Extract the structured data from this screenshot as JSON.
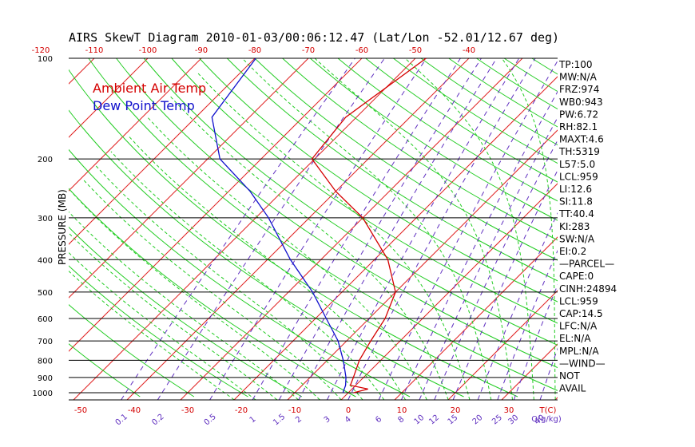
{
  "chart_data": {
    "type": "line",
    "title": "AIRS SkewT Diagram 2010-01-03/00:06:12.47 (Lat/Lon -52.01/12.67 deg)",
    "ylabel": "PRESSURE (MB)",
    "xlabel": "T(C)",
    "mixing_ratio_label": "Q(g/kg)",
    "pressure_ticks": [
      100,
      200,
      300,
      400,
      500,
      600,
      700,
      800,
      900,
      1000
    ],
    "pressure_tick_labels": [
      "100",
      "200",
      "300",
      "400",
      "500",
      "600",
      "700",
      "800",
      "900",
      "1000"
    ],
    "top_temp_ticks": [
      -120,
      -110,
      -100,
      -90,
      -80,
      -70,
      -60,
      -50,
      -40
    ],
    "top_temp_labels": [
      "-120",
      "-110",
      "-100",
      "-90",
      "-80",
      "-70",
      "-60",
      "-50",
      "-40"
    ],
    "bottom_temp_ticks": [
      -50,
      -40,
      -30,
      -20,
      -10,
      0,
      10,
      20,
      30
    ],
    "bottom_temp_labels": [
      "-50",
      "-40",
      "-30",
      "-20",
      "-10",
      "0",
      "10",
      "20",
      "30"
    ],
    "mixing_ratio_ticks": [
      0.1,
      0.2,
      0.5,
      1,
      1.5,
      2,
      3,
      4,
      6,
      8,
      10,
      12,
      15,
      20,
      25,
      30,
      40
    ],
    "mixing_ratio_labels": [
      "0.1",
      "0.2",
      "0.5",
      "1",
      "1.5",
      "2",
      "3",
      "4",
      "6",
      "8",
      "10",
      "12",
      "15",
      "20",
      "25",
      "30",
      "40"
    ],
    "series": [
      {
        "name": "Ambient Air Temp",
        "color": "#d40000",
        "points": [
          [
            1000,
            1
          ],
          [
            975,
            3
          ],
          [
            950,
            -1
          ],
          [
            900,
            -1.9
          ],
          [
            800,
            -4
          ],
          [
            700,
            -5.5
          ],
          [
            600,
            -7
          ],
          [
            500,
            -10
          ],
          [
            400,
            -17.5
          ],
          [
            300,
            -30
          ],
          [
            250,
            -40
          ],
          [
            200,
            -50.5
          ],
          [
            150,
            -52
          ],
          [
            100,
            -48
          ]
        ]
      },
      {
        "name": "Dew Point Temp",
        "color": "#1010cc",
        "points": [
          [
            1000,
            -1
          ],
          [
            950,
            -1.9
          ],
          [
            900,
            -3.3
          ],
          [
            800,
            -7
          ],
          [
            700,
            -11.6
          ],
          [
            600,
            -18
          ],
          [
            500,
            -25.5
          ],
          [
            400,
            -35.7
          ],
          [
            300,
            -47.6
          ],
          [
            250,
            -56
          ],
          [
            200,
            -67.7
          ],
          [
            150,
            -77
          ],
          [
            100,
            -79.8
          ]
        ]
      }
    ],
    "grid": true,
    "legend_position": "top-left",
    "indices": [
      "TP:100",
      "MW:N/A",
      "FRZ:974",
      "WB0:943",
      "PW:6.72",
      "RH:82.1",
      "MAXT:4.6",
      "TH:5319",
      "L57:5.0",
      "LCL:959",
      "LI:12.6",
      "SI:11.8",
      "TT:40.4",
      "KI:283",
      "SW:N/A",
      "EI:0.2",
      "—PARCEL—",
      "CAPE:0",
      "CINH:24894",
      "LCL:959",
      "CAP:14.5",
      "LFC:N/A",
      "EL:N/A",
      "MPL:N/A",
      "—WIND—",
      "NOT",
      "AVAIL"
    ]
  },
  "colors": {
    "isotherm": "#e02020",
    "dry_adiabat": "#22cc22",
    "moist_adiabat": "#22cc22",
    "mixing_ratio": "#6030c0",
    "isobar": "#000000",
    "top_tick": "#d40000",
    "bottom_tick": "#d40000",
    "mr_tick": "#6030c0"
  }
}
